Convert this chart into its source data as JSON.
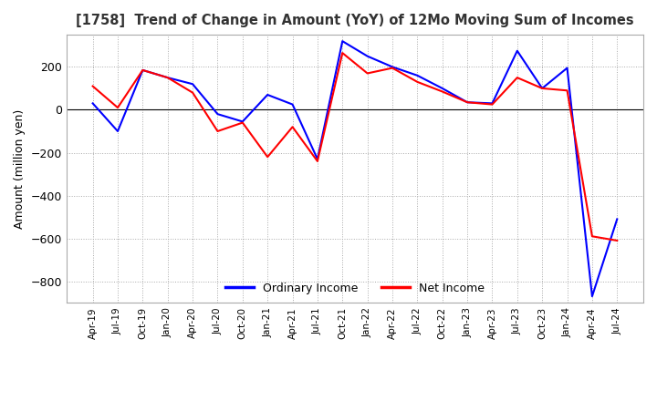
{
  "title": "[1758]  Trend of Change in Amount (YoY) of 12Mo Moving Sum of Incomes",
  "ylabel": "Amount (million yen)",
  "ylim": [
    -900,
    350
  ],
  "yticks": [
    200,
    0,
    -200,
    -400,
    -600,
    -800
  ],
  "legend_labels": [
    "Ordinary Income",
    "Net Income"
  ],
  "line_colors": [
    "#0000ff",
    "#ff0000"
  ],
  "x_labels": [
    "Apr-19",
    "Jul-19",
    "Oct-19",
    "Jan-20",
    "Apr-20",
    "Jul-20",
    "Oct-20",
    "Jan-21",
    "Apr-21",
    "Jul-21",
    "Oct-21",
    "Jan-22",
    "Apr-22",
    "Jul-22",
    "Oct-22",
    "Jan-23",
    "Apr-23",
    "Jul-23",
    "Oct-23",
    "Jan-24",
    "Apr-24",
    "Jul-24"
  ],
  "ordinary_income": [
    30,
    -100,
    185,
    150,
    120,
    -20,
    -55,
    70,
    25,
    -230,
    320,
    250,
    200,
    160,
    100,
    35,
    30,
    275,
    100,
    195,
    -870,
    -510
  ],
  "net_income": [
    110,
    10,
    185,
    150,
    80,
    -100,
    -60,
    -220,
    -80,
    -240,
    265,
    170,
    195,
    130,
    85,
    35,
    25,
    150,
    100,
    90,
    -590,
    -610
  ]
}
